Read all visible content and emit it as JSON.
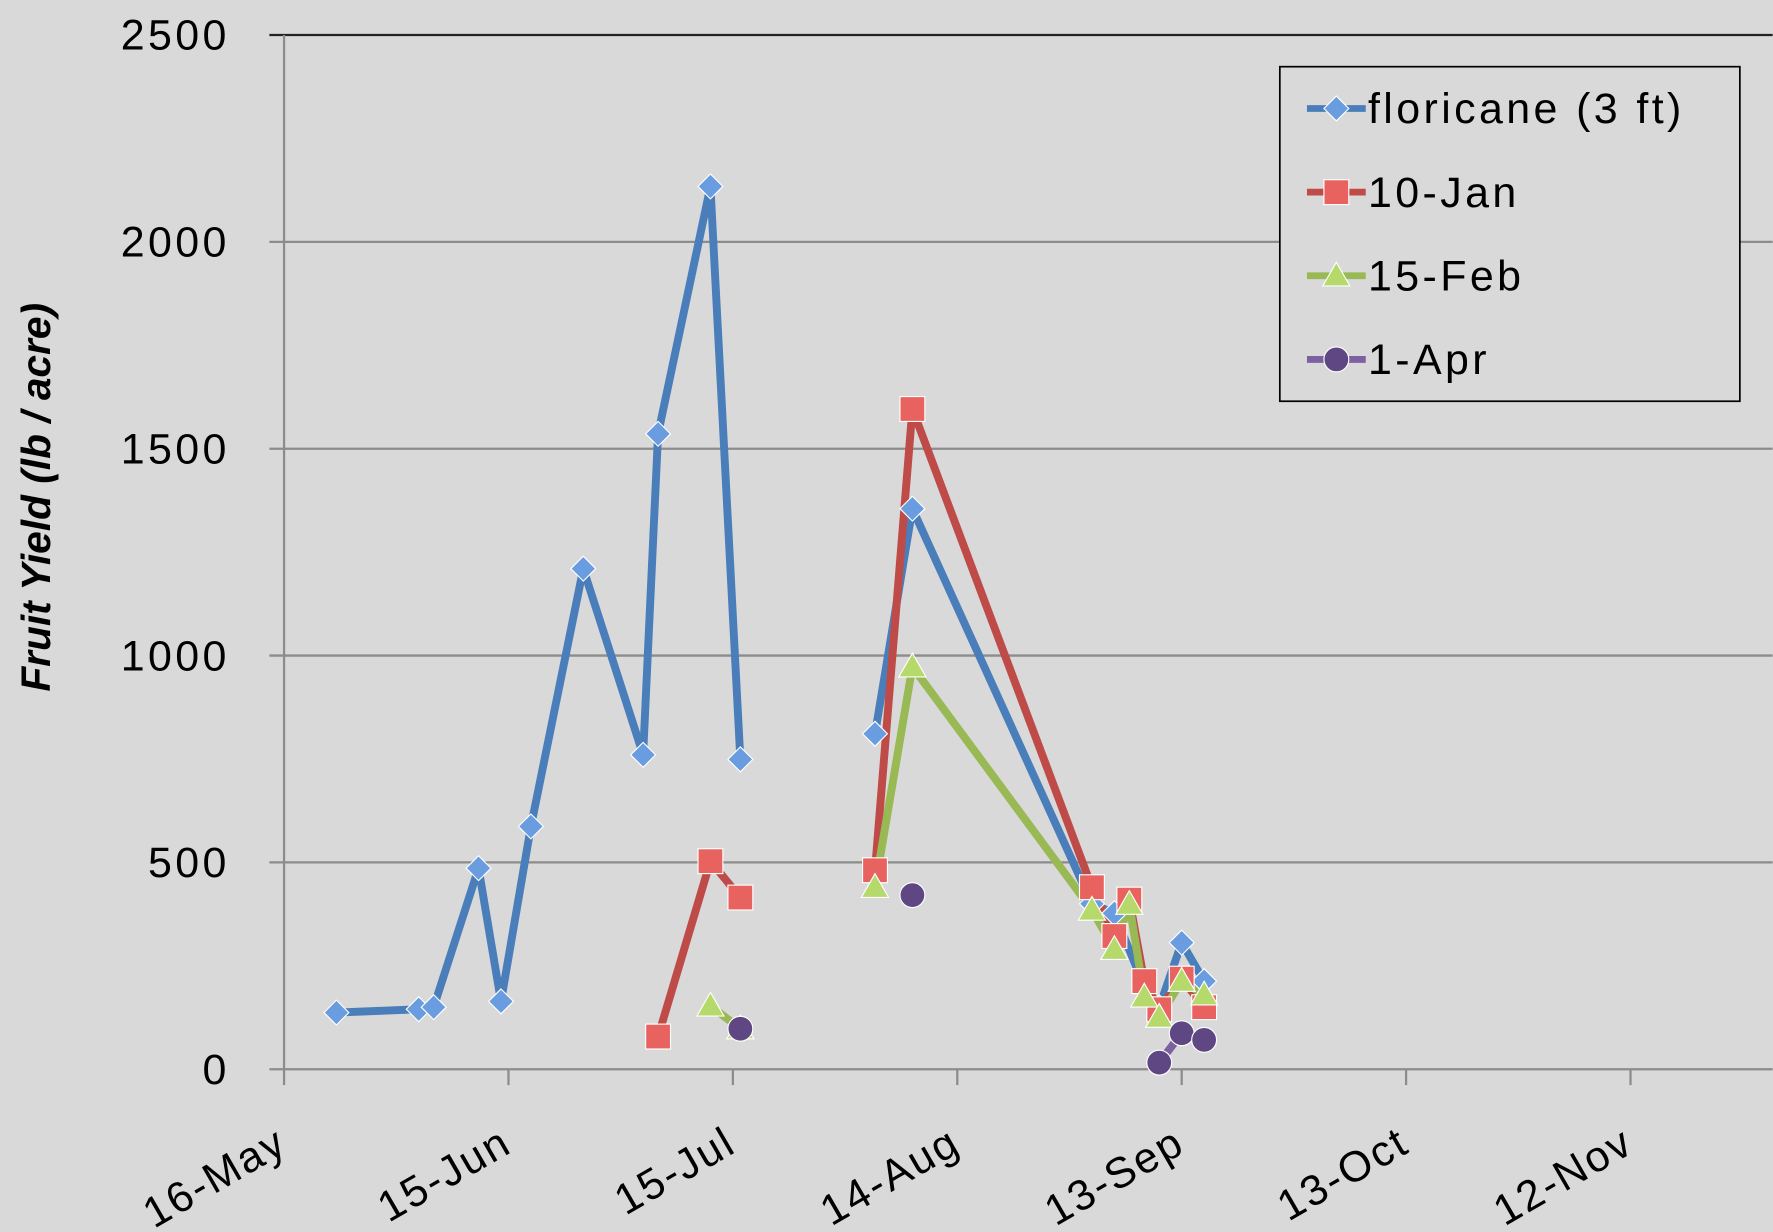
{
  "chart_data": {
    "type": "line",
    "y_label": "Fruit  Yield (lb / acre)",
    "xlim": [
      136,
      335
    ],
    "xticks": [
      {
        "value": 136,
        "label": "16-May"
      },
      {
        "value": 166,
        "label": "15-Jun"
      },
      {
        "value": 196,
        "label": "15-Jul"
      },
      {
        "value": 226,
        "label": "14-Aug"
      },
      {
        "value": 256,
        "label": "13-Sep"
      },
      {
        "value": 286,
        "label": "13-Oct"
      },
      {
        "value": 316,
        "label": "12-Nov"
      }
    ],
    "ylim": [
      0,
      2500
    ],
    "yticks": [
      0,
      500,
      1000,
      1500,
      2000,
      2500
    ],
    "grid": true,
    "legend": "upper right",
    "series": [
      {
        "name": "floricane (3 ft)",
        "color": "#4a7ebb",
        "marker": "diamond",
        "marker_color": "#6a9ce0",
        "x": [
          143,
          154,
          156,
          162,
          165,
          169,
          176,
          184,
          186,
          193,
          197,
          null,
          215,
          220,
          244,
          247,
          251,
          253,
          256,
          259
        ],
        "values": [
          137,
          145,
          150,
          486,
          164,
          587,
          1210,
          760,
          1536,
          2134,
          749,
          null,
          811,
          1355,
          400,
          377,
          200,
          150,
          306,
          213
        ]
      },
      {
        "name": "10-Jan",
        "color": "#be4b48",
        "marker": "square",
        "marker_color": "#e8625f",
        "x": [
          186,
          193,
          197,
          null,
          215,
          220,
          244,
          247,
          249,
          251,
          253,
          256,
          259
        ],
        "values": [
          79,
          503,
          415,
          null,
          481,
          1596,
          440,
          322,
          410,
          213,
          145,
          219,
          150
        ]
      },
      {
        "name": "15-Feb",
        "color": "#98b954",
        "marker": "triangle",
        "marker_color": "#b5d96a",
        "x": [
          193,
          197,
          null,
          215,
          220,
          244,
          247,
          249,
          251,
          253,
          256,
          259
        ],
        "values": [
          153,
          98,
          null,
          440,
          973,
          385,
          290,
          399,
          175,
          126,
          213,
          180
        ]
      },
      {
        "name": "1-Apr",
        "color": "#7d60a0",
        "marker": "circle",
        "marker_color": "#5e4783",
        "x": [
          197,
          null,
          220,
          null,
          253,
          256,
          259
        ],
        "values": [
          98,
          null,
          421,
          null,
          16,
          87,
          71
        ]
      }
    ]
  }
}
